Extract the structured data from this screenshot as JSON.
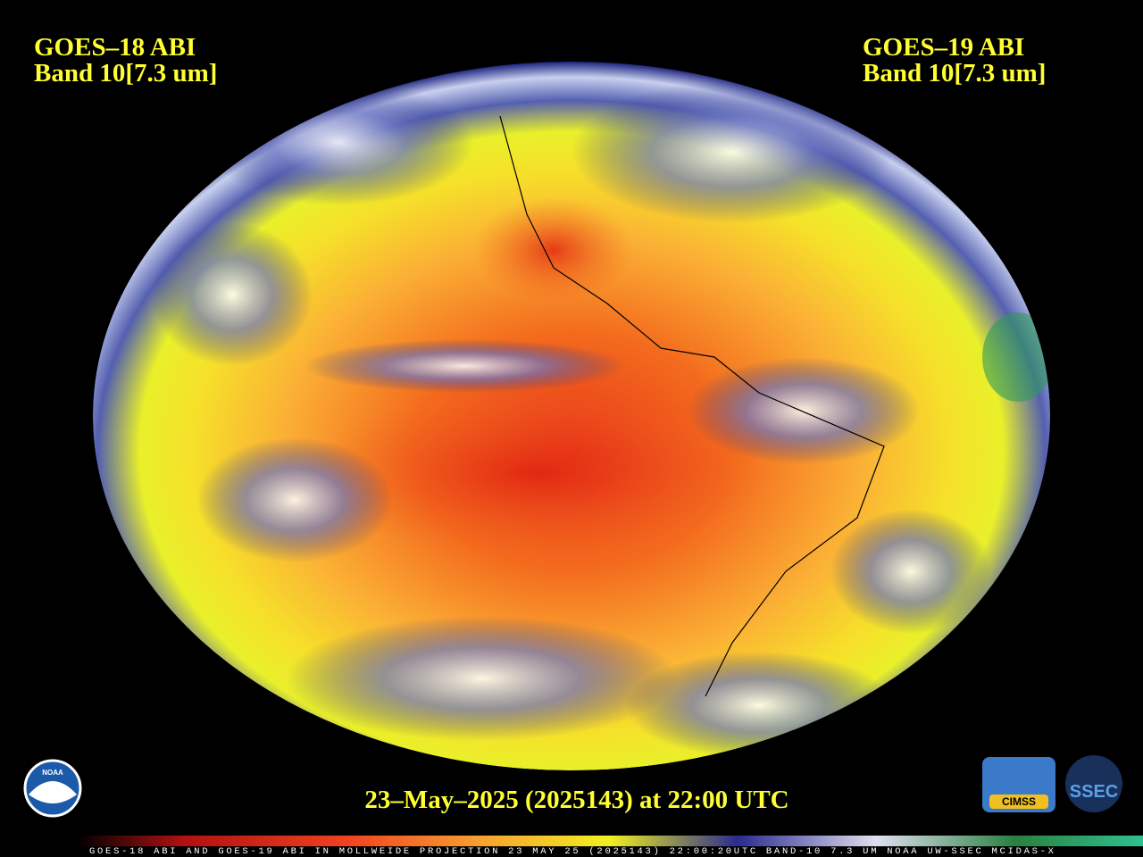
{
  "left_label": {
    "satellite": "GOES–18 ABI",
    "band": "Band 10[7.3 um]"
  },
  "right_label": {
    "satellite": "GOES–19 ABI",
    "band": "Band 10[7.3 um]"
  },
  "timestamp": "23–May–2025 (2025143) at 22:00 UTC",
  "colorbar_caption": "GOES-18 ABI AND GOES-19 ABI IN MOLLWEIDE PROJECTION 23 MAY 25 (2025143) 22:00:20UTC BAND-10 7.3 UM NOAA UW-SSEC MCIDAS-X",
  "logos": {
    "noaa": "NOAA",
    "cimss": "CIMSS",
    "ssec": "SSEC"
  }
}
